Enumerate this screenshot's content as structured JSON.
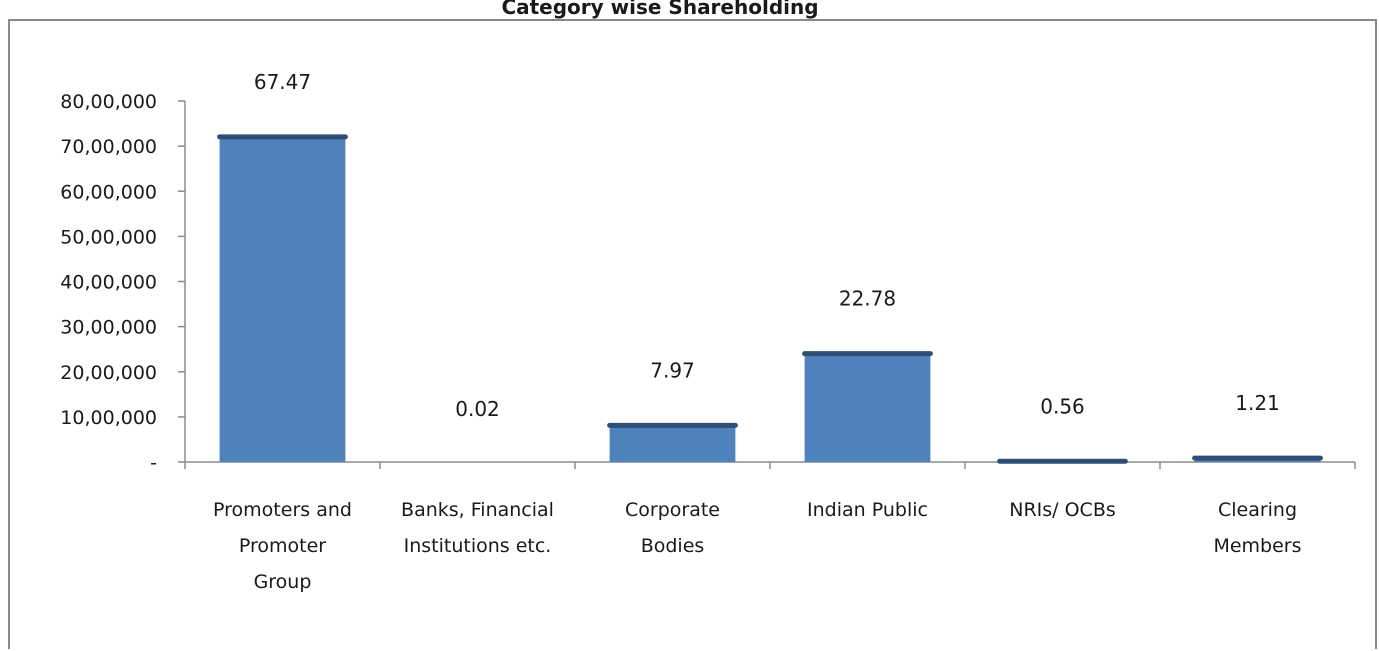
{
  "title_fragment": "Category wise Shareholding",
  "chart_data": {
    "type": "bar",
    "categories": [
      [
        "Promoters and",
        "Promoter",
        "Group"
      ],
      [
        "Banks, Financial",
        "Institutions etc."
      ],
      [
        "Corporate",
        "Bodies"
      ],
      [
        "Indian Public"
      ],
      [
        "NRIs/ OCBs"
      ],
      [
        "Clearing",
        "Members"
      ]
    ],
    "values": [
      7250000,
      2000,
      856000,
      2445000,
      60000,
      130000
    ],
    "data_labels": [
      "67.47",
      "0.02",
      "7.97",
      "22.78",
      "0.56",
      "1.21"
    ],
    "ylim": [
      0,
      8000000
    ],
    "ytick_values": [
      0,
      1000000,
      2000000,
      3000000,
      4000000,
      5000000,
      6000000,
      7000000,
      8000000
    ],
    "ytick_labels": [
      "-",
      "10,00,000",
      "20,00,000",
      "30,00,000",
      "40,00,000",
      "50,00,000",
      "60,00,000",
      "70,00,000",
      "80,00,000"
    ],
    "bar_color": "#4F81BD",
    "bar_cap_color": "#2E4E73",
    "grid": false,
    "legend": "none"
  }
}
